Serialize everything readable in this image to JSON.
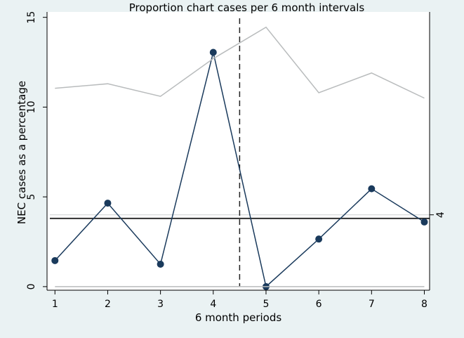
{
  "chart_data": {
    "type": "line",
    "title": "Proportion chart cases per 6 month intervals",
    "xlabel": "6 month periods",
    "ylabel": "NEC cases as a percentage",
    "x": [
      1,
      2,
      3,
      4,
      5,
      6,
      7,
      8
    ],
    "xlim": [
      0.85,
      8.1
    ],
    "ylim": [
      -0.2,
      15.3
    ],
    "yticks": [
      0,
      5,
      10,
      15
    ],
    "xticks": [
      1,
      2,
      3,
      4,
      5,
      6,
      7,
      8
    ],
    "series": [
      {
        "role": "observed",
        "values": [
          1.45,
          4.65,
          1.25,
          13.05,
          0.0,
          2.65,
          5.45,
          3.6
        ],
        "color": "#1a3a5c",
        "markers": true
      },
      {
        "role": "upper-control-limit",
        "values": [
          11.05,
          11.3,
          10.6,
          12.7,
          14.45,
          10.8,
          11.9,
          10.5
        ],
        "color": "#b9bcbd",
        "markers": false
      },
      {
        "role": "lower-control-limit",
        "values": [
          0,
          0,
          0,
          0,
          0,
          0,
          0,
          0
        ],
        "color": "#b9bcbd",
        "markers": false
      }
    ],
    "reference_lines": {
      "center_line": {
        "y": 3.8,
        "color": "#222222"
      },
      "light_line": {
        "y": 4.0,
        "color": "#d2d6d7"
      },
      "vertical_dashed": {
        "x": 4.5,
        "color": "#222222"
      }
    },
    "right_axis": {
      "tick_value": 4,
      "tick_label": "4"
    },
    "grid": false,
    "legend": "none"
  }
}
